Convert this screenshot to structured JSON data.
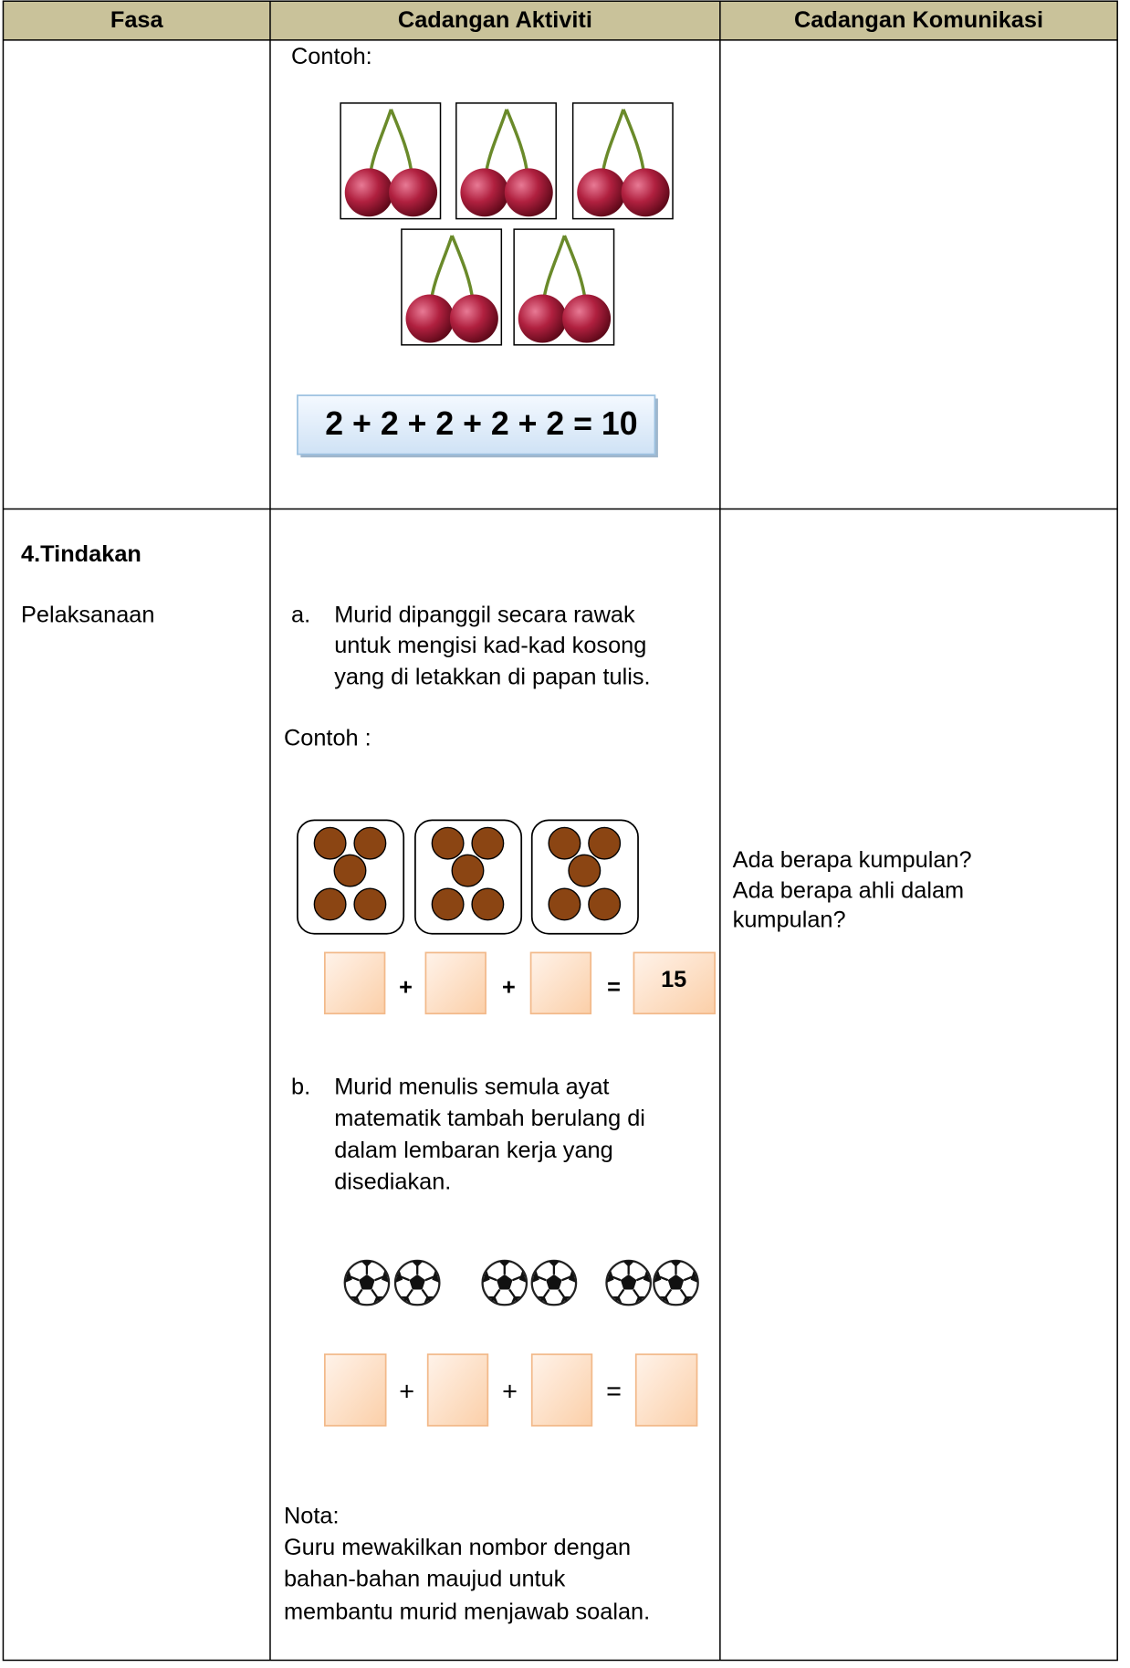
{
  "header": {
    "columns": [
      "Fasa",
      "Cadangan Aktiviti",
      "Cadangan Komunikasi"
    ]
  },
  "rows": [
    {
      "activity": {
        "example_label": "Contoh:",
        "equation": "2 + 2 + 2 + 2 + 2 = 10"
      }
    },
    {
      "phase": {
        "title": "4.Tindakan",
        "subtitle": "Pelaksanaan"
      },
      "activity": {
        "step_a": {
          "marker": "a.",
          "lines": [
            "Murid dipanggil secara rawak",
            "untuk mengisi kad-kad kosong",
            "yang di letakkan di papan tulis."
          ]
        },
        "example_label": "Contoh :",
        "exercise_1": {
          "operators": [
            "+",
            "+",
            "="
          ],
          "answer": 15
        },
        "step_b": {
          "marker": "b.",
          "lines": [
            "Murid menulis semula ayat",
            "matematik tambah berulang di",
            "dalam lembaran kerja yang",
            "disediakan."
          ]
        },
        "exercise_2": {
          "operators": [
            "+",
            "+",
            "="
          ]
        },
        "note": {
          "label": "Nota:",
          "lines": [
            "Guru mewakilkan nombor dengan",
            "bahan-bahan maujud untuk",
            "membantu murid menjawab soalan."
          ]
        }
      },
      "communication": {
        "lines": [
          "Ada berapa kumpulan?",
          "Ada berapa ahli dalam",
          "kumpulan?"
        ]
      }
    }
  ]
}
